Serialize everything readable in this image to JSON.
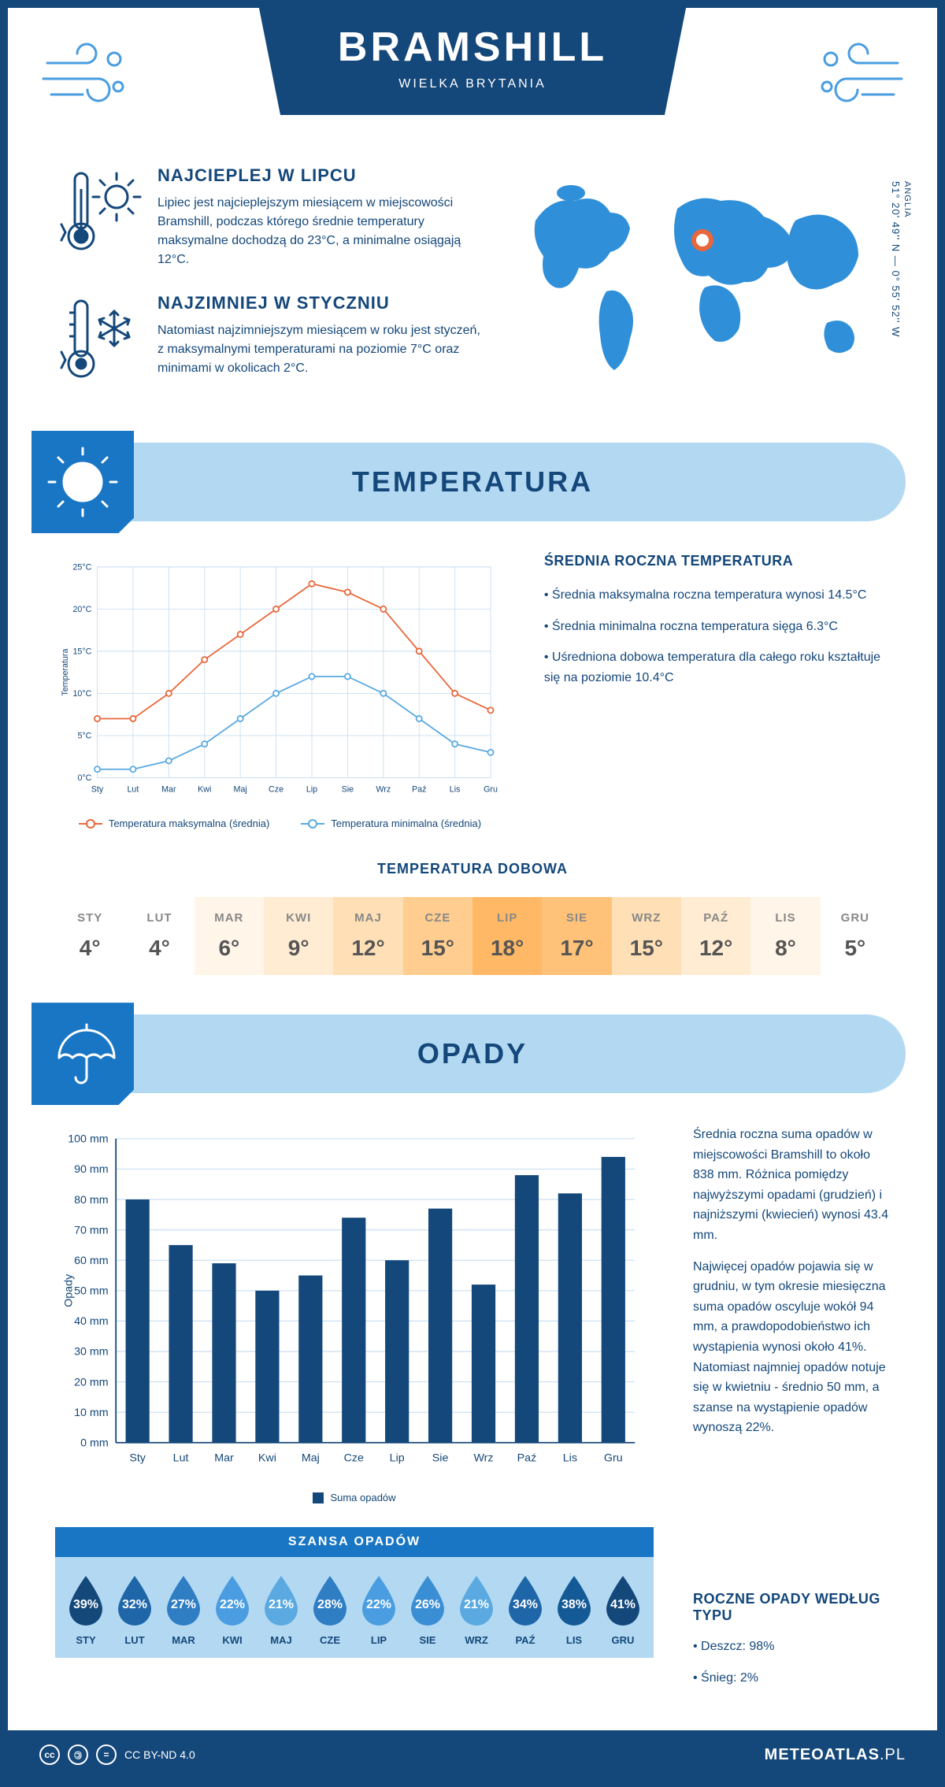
{
  "header": {
    "title": "BRAMSHILL",
    "subtitle": "WIELKA BRYTANIA"
  },
  "coords": {
    "region": "ANGLIA",
    "text": "51° 20' 49'' N — 0° 55' 52'' W"
  },
  "intro": {
    "warm": {
      "title": "NAJCIEPLEJ W LIPCU",
      "text": "Lipiec jest najcieplejszym miesiącem w miejscowości Bramshill, podczas którego średnie temperatury maksymalne dochodzą do 23°C, a minimalne osiągają 12°C."
    },
    "cold": {
      "title": "NAJZIMNIEJ W STYCZNIU",
      "text": "Natomiast najzimniejszym miesiącem w roku jest styczeń, z maksymalnymi temperaturami na poziomie 7°C oraz minimami w okolicach 2°C."
    }
  },
  "months_short": [
    "Sty",
    "Lut",
    "Mar",
    "Kwi",
    "Maj",
    "Cze",
    "Lip",
    "Sie",
    "Wrz",
    "Paź",
    "Lis",
    "Gru"
  ],
  "months_upper": [
    "STY",
    "LUT",
    "MAR",
    "KWI",
    "MAJ",
    "CZE",
    "LIP",
    "SIE",
    "WRZ",
    "PAŹ",
    "LIS",
    "GRU"
  ],
  "temp_section": {
    "title": "TEMPERATURA",
    "chart": {
      "type": "line",
      "y_label": "Temperatura",
      "y_ticks": [
        0,
        5,
        10,
        15,
        20,
        25
      ],
      "y_tick_labels": [
        "0°C",
        "5°C",
        "10°C",
        "15°C",
        "20°C",
        "25°C"
      ],
      "ylim": [
        0,
        25
      ],
      "grid_color": "#c9dff2",
      "background": "#ffffff",
      "series": [
        {
          "name": "Temperatura maksymalna (średnia)",
          "color": "#e8673c",
          "values": [
            7,
            7,
            10,
            14,
            17,
            20,
            23,
            22,
            20,
            15,
            10,
            8
          ]
        },
        {
          "name": "Temperatura minimalna (średnia)",
          "color": "#5aa9e0",
          "values": [
            1,
            1,
            2,
            4,
            7,
            10,
            12,
            12,
            10,
            7,
            4,
            3
          ]
        }
      ],
      "marker_size": 4,
      "line_width": 2
    },
    "avg": {
      "title": "ŚREDNIA ROCZNA TEMPERATURA",
      "bullets": [
        "Średnia maksymalna roczna temperatura wynosi 14.5°C",
        "Średnia minimalna roczna temperatura sięga 6.3°C",
        "Uśredniona dobowa temperatura dla całego roku kształtuje się na poziomie 10.4°C"
      ]
    },
    "daily": {
      "title": "TEMPERATURA DOBOWA",
      "values": [
        4,
        4,
        6,
        9,
        12,
        15,
        18,
        17,
        15,
        12,
        8,
        5
      ],
      "cell_colors": [
        "#ffffff",
        "#ffffff",
        "#fff5e8",
        "#ffecd3",
        "#ffdfb5",
        "#ffcd8f",
        "#ffb866",
        "#ffc278",
        "#ffdfb5",
        "#ffecd3",
        "#fff5e8",
        "#ffffff"
      ]
    }
  },
  "rain_section": {
    "title": "OPADY",
    "chart": {
      "type": "bar",
      "y_label": "Opady",
      "y_ticks": [
        0,
        10,
        20,
        30,
        40,
        50,
        60,
        70,
        80,
        90,
        100
      ],
      "y_tick_labels": [
        "0 mm",
        "10 mm",
        "20 mm",
        "30 mm",
        "40 mm",
        "50 mm",
        "60 mm",
        "70 mm",
        "80 mm",
        "90 mm",
        "100 mm"
      ],
      "ylim": [
        0,
        100
      ],
      "bar_color": "#14477a",
      "grid_color": "#c9dff2",
      "values": [
        80,
        65,
        59,
        50,
        55,
        74,
        60,
        77,
        52,
        88,
        82,
        94
      ],
      "legend": "Suma opadów",
      "bar_width": 0.55
    },
    "text1": "Średnia roczna suma opadów w miejscowości Bramshill to około 838 mm. Różnica pomiędzy najwyższymi opadami (grudzień) i najniższymi (kwiecień) wynosi 43.4 mm.",
    "text2": "Najwięcej opadów pojawia się w grudniu, w tym okresie miesięczna suma opadów oscyluje wokół 94 mm, a prawdopodobieństwo ich wystąpienia wynosi około 41%. Natomiast najmniej opadów notuje się w kwietniu - średnio 50 mm, a szanse na wystąpienie opadów wynoszą 22%.",
    "chance": {
      "title": "SZANSA OPADÓW",
      "values": [
        39,
        32,
        27,
        22,
        21,
        28,
        22,
        26,
        21,
        34,
        38,
        41
      ],
      "drop_colors": [
        "#14477a",
        "#1e66a8",
        "#2f7ec4",
        "#4a9de0",
        "#5aa9e0",
        "#2f7ec4",
        "#4a9de0",
        "#3a8fd4",
        "#5aa9e0",
        "#1e66a8",
        "#145a96",
        "#14477a"
      ]
    },
    "by_type": {
      "title": "ROCZNE OPADY WEDŁUG TYPU",
      "bullets": [
        "Deszcz: 98%",
        "Śnieg: 2%"
      ]
    }
  },
  "footer": {
    "license": "CC BY-ND 4.0",
    "site": "METEOATLAS",
    "tld": ".PL"
  }
}
